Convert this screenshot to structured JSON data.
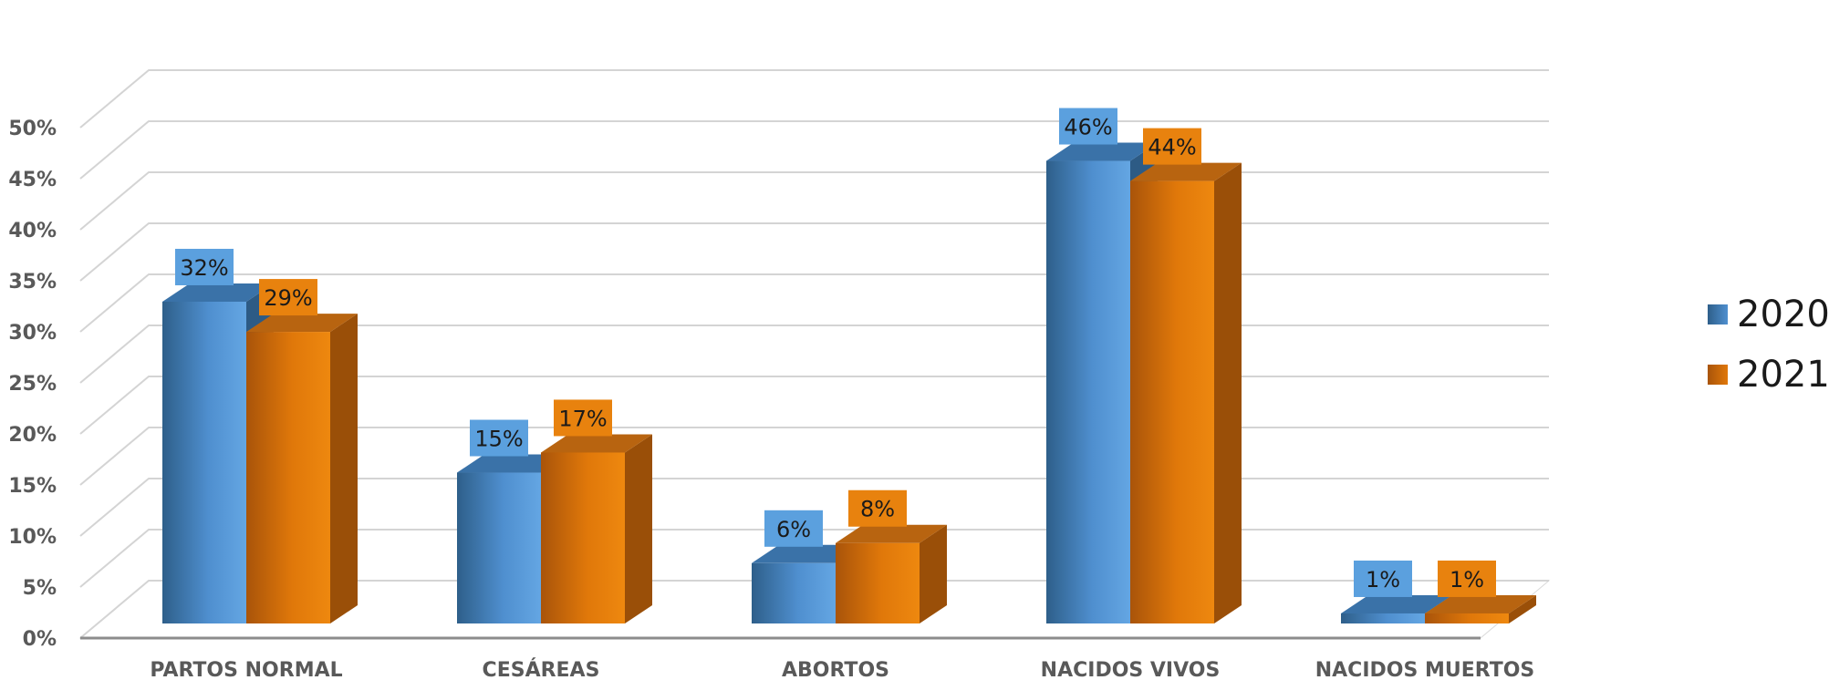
{
  "chart_data": {
    "type": "bar",
    "style": "3d-clustered-column",
    "categories": [
      "PARTOS NORMAL",
      "CESÁREAS",
      "ABORTOS",
      "NACIDOS VIVOS",
      "NACIDOS MUERTOS"
    ],
    "series": [
      {
        "name": "2020",
        "values": [
          32,
          15,
          6,
          46,
          1
        ],
        "labels": [
          "32%",
          "15%",
          "6%",
          "46%",
          "1%"
        ],
        "color": "#4f8fcf"
      },
      {
        "name": "2021",
        "values": [
          29,
          17,
          8,
          44,
          1
        ],
        "labels": [
          "29%",
          "17%",
          "8%",
          "44%",
          "1%"
        ],
        "color": "#e0780a"
      }
    ],
    "y_ticks": [
      "0%",
      "5%",
      "10%",
      "15%",
      "20%",
      "25%",
      "30%",
      "35%",
      "40%",
      "45%",
      "50%"
    ],
    "ylim": [
      0,
      50
    ],
    "y_unit": "%",
    "grid": true,
    "legend_position": "right"
  },
  "legend": {
    "items": [
      {
        "label": "2020",
        "color": "#4f8fcf"
      },
      {
        "label": "2021",
        "color": "#e0780a"
      }
    ]
  }
}
